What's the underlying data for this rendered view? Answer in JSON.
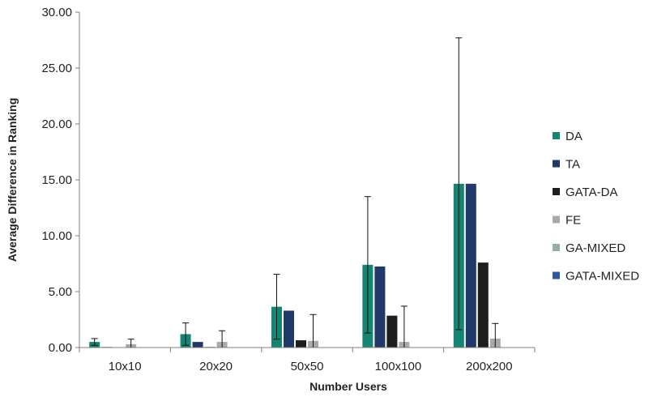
{
  "chart_data": {
    "type": "bar",
    "title": "",
    "xlabel": "Number Users",
    "ylabel": "Average Difference in Ranking",
    "categories": [
      "10x10",
      "20x20",
      "50x50",
      "100x100",
      "200x200"
    ],
    "ylim": [
      0,
      30
    ],
    "yticks": [
      0,
      5,
      10,
      15,
      20,
      25,
      30
    ],
    "ytick_labels": [
      "0.00",
      "5.00",
      "10.00",
      "15.00",
      "20.00",
      "25.00",
      "30.00"
    ],
    "grid": false,
    "legend_position": "right",
    "series": [
      {
        "name": "DA",
        "color": "#138572",
        "values": [
          0.5,
          1.2,
          3.65,
          7.4,
          14.65
        ],
        "error": [
          0.3,
          1.0,
          2.9,
          6.1,
          13.05
        ]
      },
      {
        "name": "TA",
        "color": "#1f3a68",
        "values": [
          0.05,
          0.5,
          3.3,
          7.25,
          14.65
        ],
        "error": null
      },
      {
        "name": "GATA-DA",
        "color": "#1e1e1e",
        "values": [
          0.0,
          0.05,
          0.65,
          2.85,
          7.6
        ],
        "error": null
      },
      {
        "name": "FE",
        "color": "#a9a9a9",
        "values": [
          0.3,
          0.5,
          0.6,
          0.5,
          0.8
        ],
        "error": [
          0.45,
          1.0,
          2.35,
          3.2,
          1.35
        ]
      },
      {
        "name": "GA-MIXED",
        "color": "#93b0a6",
        "values": [
          0.0,
          0.0,
          0.0,
          0.0,
          0.0
        ],
        "error": null
      },
      {
        "name": "GATA-MIXED",
        "color": "#2b5aa3",
        "values": [
          0.0,
          0.0,
          0.0,
          0.0,
          0.0
        ],
        "error": null
      }
    ]
  }
}
